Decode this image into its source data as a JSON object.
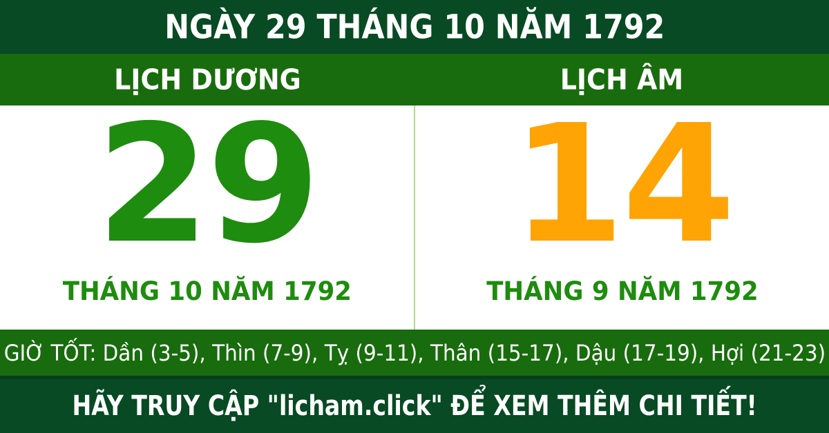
{
  "header": {
    "title": "NGÀY 29 THÁNG 10 NĂM 1792"
  },
  "columns": {
    "solar": {
      "header": "LỊCH DƯƠNG",
      "day": "29",
      "month_year": "THÁNG 10 NĂM 1792"
    },
    "lunar": {
      "header": "LỊCH ÂM",
      "day": "14",
      "month_year": "THÁNG 9 NĂM 1792"
    }
  },
  "good_hours": {
    "text": "GIỜ TỐT: Dần (3-5), Thìn (7-9), Tỵ (9-11), Thân (15-17), Dậu (17-19), Hợi (21-23)"
  },
  "footer": {
    "text": "HÃY TRUY CẬP \"licham.click\" ĐỂ XEM THÊM CHI TIẾT!"
  },
  "colors": {
    "dark_green": "#074a23",
    "band_green": "#186c0d",
    "number_green": "#1e8c0e",
    "label_green": "#1e8c0e",
    "accent_orange": "#ffa404",
    "divider_green": "#b2da85",
    "text_white": "#ffffff"
  }
}
